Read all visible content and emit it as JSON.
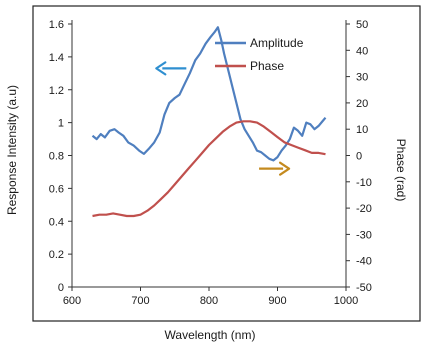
{
  "chart_data": {
    "type": "line",
    "xlabel": "Wavelength (nm)",
    "ylabel_left": "Response Intensity (a.u)",
    "ylabel_right": "Phase (rad)",
    "x_ticks": [
      "600",
      "700",
      "800",
      "900",
      "1000"
    ],
    "y_left_ticks": [
      "0",
      "0.2",
      "0.4",
      "0.6",
      "0.8",
      "1",
      "1.2",
      "1.4",
      "1.6"
    ],
    "y_right_ticks": [
      "-50",
      "-40",
      "-30",
      "-20",
      "-10",
      "0",
      "10",
      "20",
      "30",
      "40",
      "50"
    ],
    "xlim": [
      600,
      1000
    ],
    "ylim_left": [
      0,
      1.6
    ],
    "ylim_right": [
      -50,
      50
    ],
    "grid": false,
    "legend_position": "top-right",
    "series": [
      {
        "name": "Amplitude",
        "axis": "left",
        "color": "#4f7fbf",
        "x": [
          630,
          636,
          642,
          648,
          655,
          662,
          668,
          675,
          682,
          690,
          698,
          705,
          712,
          720,
          728,
          735,
          742,
          750,
          757,
          765,
          772,
          780,
          787,
          795,
          802,
          808,
          813,
          818,
          822,
          828,
          834,
          840,
          846,
          852,
          858,
          864,
          870,
          876,
          882,
          888,
          894,
          900,
          906,
          912,
          918,
          924,
          930,
          936,
          942,
          948,
          954,
          960,
          966,
          970
        ],
        "y": [
          0.92,
          0.9,
          0.93,
          0.91,
          0.95,
          0.96,
          0.94,
          0.92,
          0.88,
          0.86,
          0.83,
          0.81,
          0.84,
          0.88,
          0.94,
          1.05,
          1.12,
          1.15,
          1.17,
          1.24,
          1.3,
          1.38,
          1.42,
          1.48,
          1.52,
          1.55,
          1.58,
          1.5,
          1.42,
          1.32,
          1.22,
          1.12,
          1.02,
          0.96,
          0.92,
          0.88,
          0.83,
          0.82,
          0.8,
          0.78,
          0.77,
          0.79,
          0.83,
          0.86,
          0.9,
          0.97,
          0.95,
          0.92,
          1.0,
          0.99,
          0.96,
          0.98,
          1.01,
          1.03
        ]
      },
      {
        "name": "Phase",
        "axis": "right",
        "color": "#c0504d",
        "x": [
          630,
          640,
          650,
          660,
          670,
          680,
          690,
          700,
          710,
          720,
          730,
          740,
          750,
          760,
          770,
          780,
          790,
          800,
          810,
          820,
          830,
          840,
          850,
          860,
          870,
          880,
          890,
          900,
          910,
          920,
          930,
          940,
          950,
          960,
          970
        ],
        "y": [
          -23,
          -22.5,
          -22.5,
          -22,
          -22.5,
          -23,
          -23,
          -22.5,
          -21,
          -19,
          -16.5,
          -14,
          -11,
          -8,
          -5,
          -2,
          1,
          4,
          6.5,
          9,
          11,
          12.5,
          13,
          13,
          12.5,
          11,
          9,
          7,
          5,
          4,
          3,
          2,
          1,
          1,
          0.5
        ]
      }
    ],
    "annotations": [
      {
        "name": "left-arrow",
        "color": "#2f8fd0",
        "direction": "left",
        "x": 745,
        "y_left": 1.33
      },
      {
        "name": "right-arrow",
        "color": "#c48a1e",
        "direction": "right",
        "x": 895,
        "y_left": 0.72
      }
    ]
  }
}
